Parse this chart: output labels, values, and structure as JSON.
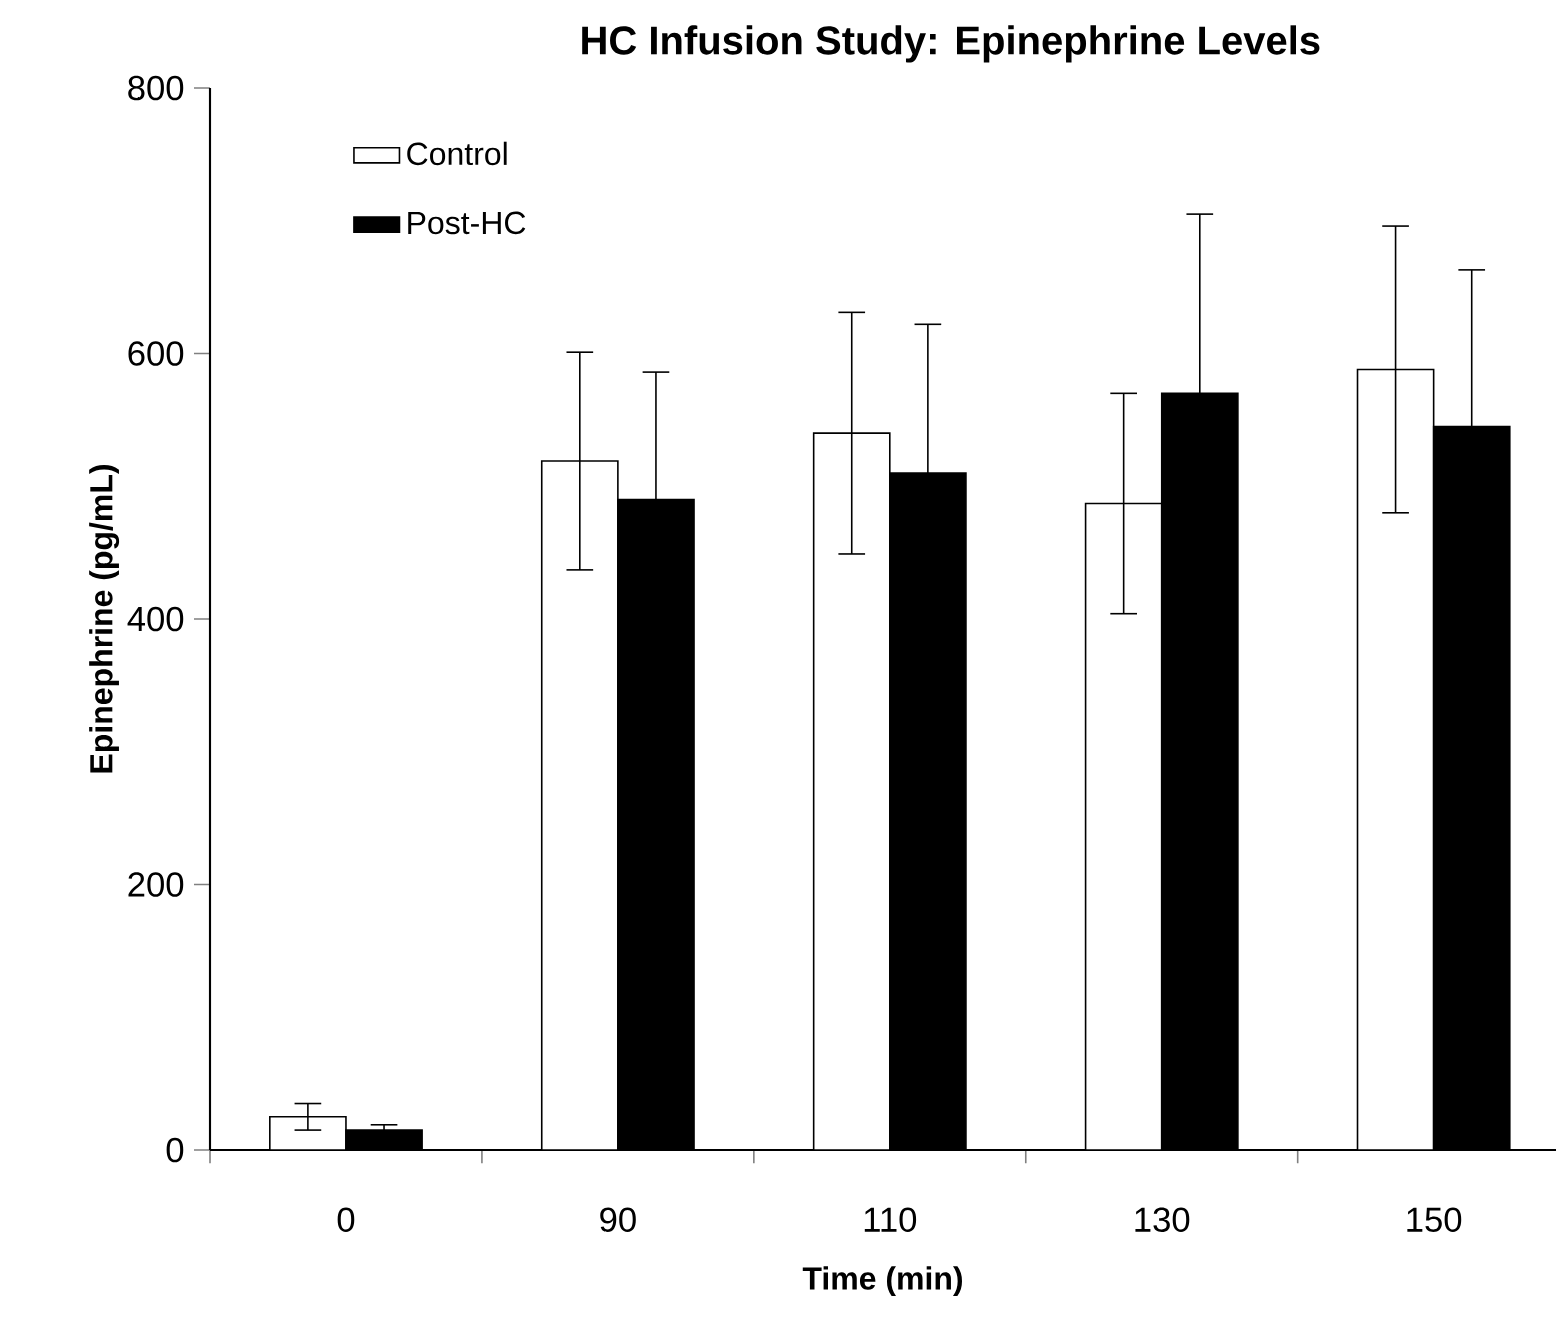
{
  "chart_data": {
    "type": "bar",
    "title": "HC Infusion Study: Epinephrine Levels",
    "xlabel": "Time (min)",
    "ylabel": "Epinephrine (pg/mL)",
    "categories": [
      "0",
      "90",
      "110",
      "130",
      "150"
    ],
    "series": [
      {
        "name": "Control",
        "color": "#ffffff",
        "values": [
          25,
          519,
          540,
          487,
          588
        ],
        "errors": [
          10,
          82,
          91,
          83,
          108
        ]
      },
      {
        "name": "Post-HC",
        "color": "#000000",
        "values": [
          15,
          490,
          510,
          570,
          545
        ],
        "errors": [
          4,
          96,
          112,
          135,
          118
        ]
      }
    ],
    "ylim": [
      0,
      800
    ],
    "yticks": [
      0,
      200,
      400,
      600,
      800
    ],
    "grid": false,
    "legend": "top left"
  }
}
